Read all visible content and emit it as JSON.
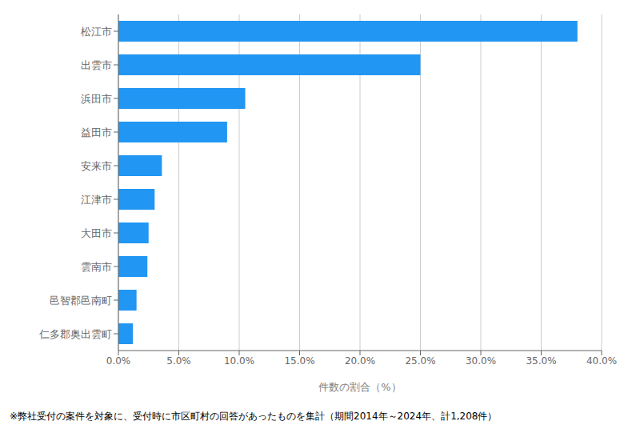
{
  "chart_data": {
    "type": "bar",
    "orientation": "horizontal",
    "categories": [
      "松江市",
      "出雲市",
      "浜田市",
      "益田市",
      "安来市",
      "江津市",
      "大田市",
      "雲南市",
      "邑智郡邑南町",
      "仁多郡奥出雲町"
    ],
    "values": [
      38.0,
      25.0,
      10.5,
      9.0,
      3.6,
      3.0,
      2.5,
      2.4,
      1.5,
      1.2
    ],
    "color": "#2196F3",
    "xlabel": "件数の割合（%）",
    "xlim": [
      0,
      40.0
    ],
    "xticks": [
      {
        "value": 0,
        "label": "0.0%"
      },
      {
        "value": 5,
        "label": "5.0%"
      },
      {
        "value": 10,
        "label": "10.0%"
      },
      {
        "value": 15,
        "label": "15.0%"
      },
      {
        "value": 20,
        "label": "20.0%"
      },
      {
        "value": 25,
        "label": "25.0%"
      },
      {
        "value": 30,
        "label": "30.0%"
      },
      {
        "value": 35,
        "label": "35.0%"
      },
      {
        "value": 40,
        "label": "40.0%"
      }
    ],
    "grid": "x",
    "annotations": [
      "※弊社受付の案件を対象に、受付時に市区町村の回答があったものを集計（期間2014年～2024年、計1,208件）"
    ]
  }
}
